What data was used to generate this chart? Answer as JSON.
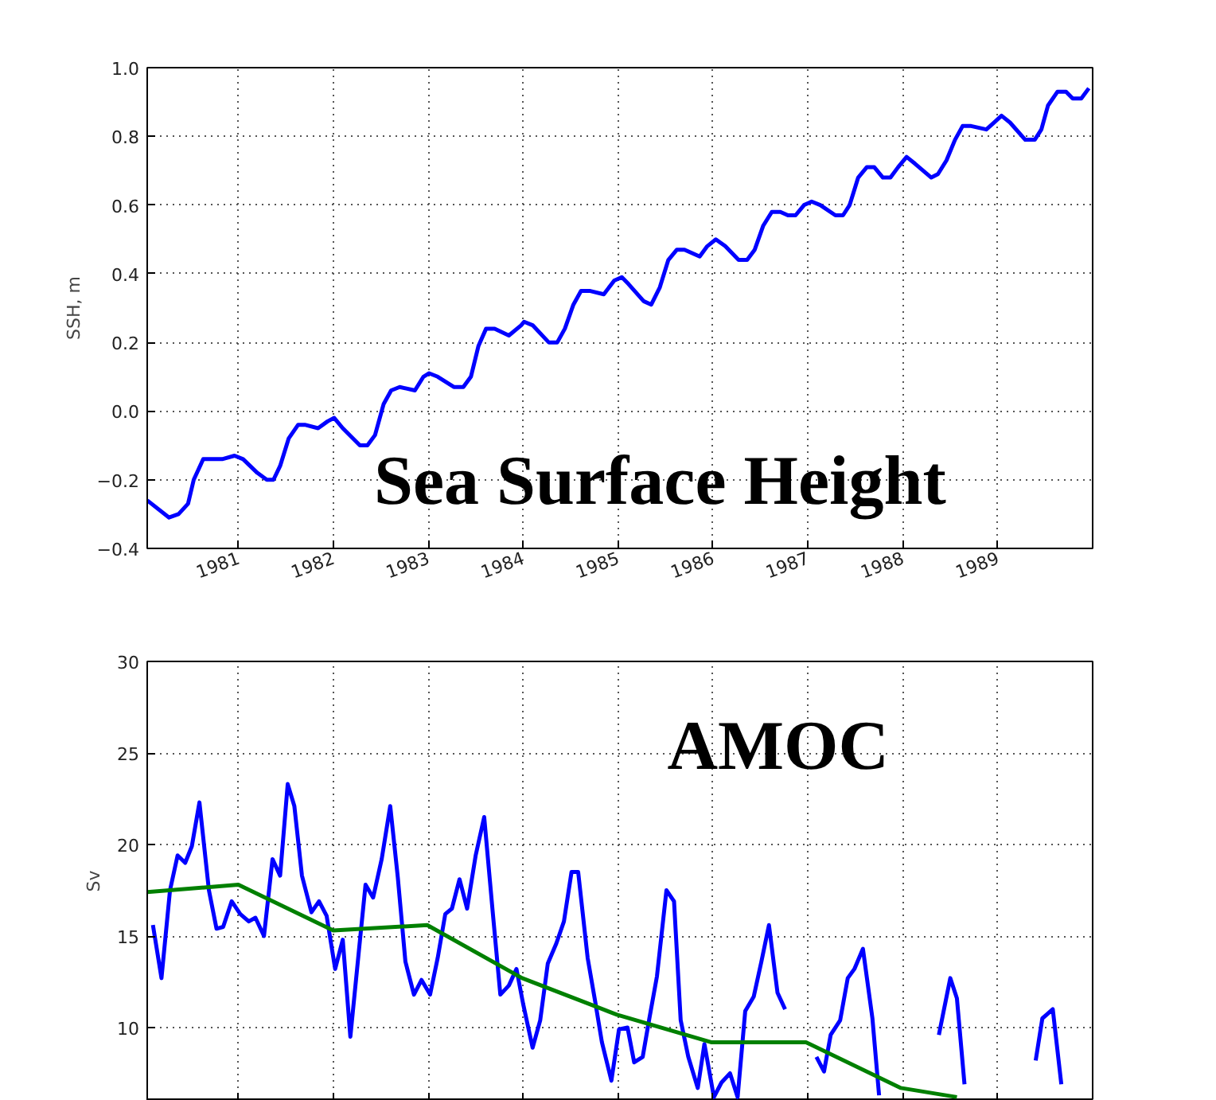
{
  "chart_data": [
    {
      "type": "line",
      "ylabel": "SSH, m",
      "annotations": [
        "Sea Surface Height"
      ],
      "xlim": [
        1980.04,
        1990
      ],
      "xticks": [
        1981,
        1982,
        1983,
        1984,
        1985,
        1986,
        1987,
        1988,
        1989
      ],
      "ylim": [
        -0.4,
        1.0
      ],
      "yticks": [
        {
          "value": -0.4,
          "label": "−0.4"
        },
        {
          "value": -0.2,
          "label": "−0.2"
        },
        {
          "value": 0,
          "label": "0.0"
        },
        {
          "value": 0.2,
          "label": "0.2"
        },
        {
          "value": 0.4,
          "label": "0.4"
        },
        {
          "value": 0.6,
          "label": "0.6"
        },
        {
          "value": 0.8,
          "label": "0.8"
        },
        {
          "value": 1.0,
          "label": "1.0"
        }
      ],
      "grid": true,
      "line_style": "solid",
      "series": [
        {
          "color": "#0000ff",
          "x": [
            1980.04,
            1980.27,
            1980.37,
            1980.47,
            1980.53,
            1980.63,
            1980.72,
            1980.83,
            1980.96,
            1981.05,
            1981.2,
            1981.3,
            1981.37,
            1981.44,
            1981.53,
            1981.63,
            1981.7,
            1981.84,
            1981.94,
            1982.01,
            1982.1,
            1982.28,
            1982.36,
            1982.44,
            1982.53,
            1982.61,
            1982.7,
            1982.86,
            1982.95,
            1983.01,
            1983.1,
            1983.27,
            1983.37,
            1983.45,
            1983.53,
            1983.61,
            1983.7,
            1983.85,
            1983.98,
            1984.01,
            1984.1,
            1984.27,
            1984.36,
            1984.44,
            1984.53,
            1984.61,
            1984.7,
            1984.85,
            1984.96,
            1985.04,
            1985.11,
            1985.27,
            1985.35,
            1985.44,
            1985.53,
            1985.62,
            1985.7,
            1985.86,
            1985.94,
            1986.03,
            1986.13,
            1986.27,
            1986.36,
            1986.44,
            1986.53,
            1986.62,
            1986.71,
            1986.79,
            1986.87,
            1986.96,
            1987.04,
            1987.13,
            1987.29,
            1987.37,
            1987.44,
            1987.53,
            1987.62,
            1987.7,
            1987.79,
            1987.87,
            1987.95,
            1988.04,
            1988.13,
            1988.3,
            1988.37,
            1988.46,
            1988.55,
            1988.63,
            1988.72,
            1988.88,
            1988.96,
            1989.04,
            1989.13,
            1989.29,
            1989.39,
            1989.46,
            1989.53,
            1989.63,
            1989.72,
            1989.79,
            1989.88,
            1989.96
          ],
          "values": [
            -0.26,
            -0.31,
            -0.3,
            -0.27,
            -0.2,
            -0.14,
            -0.14,
            -0.14,
            -0.13,
            -0.14,
            -0.18,
            -0.2,
            -0.2,
            -0.16,
            -0.08,
            -0.04,
            -0.04,
            -0.05,
            -0.03,
            -0.02,
            -0.05,
            -0.1,
            -0.1,
            -0.07,
            0.02,
            0.06,
            0.07,
            0.06,
            0.1,
            0.11,
            0.1,
            0.07,
            0.07,
            0.1,
            0.19,
            0.24,
            0.24,
            0.22,
            0.25,
            0.26,
            0.25,
            0.2,
            0.2,
            0.24,
            0.31,
            0.35,
            0.35,
            0.34,
            0.38,
            0.39,
            0.37,
            0.32,
            0.31,
            0.36,
            0.44,
            0.47,
            0.47,
            0.45,
            0.48,
            0.5,
            0.48,
            0.44,
            0.44,
            0.47,
            0.54,
            0.58,
            0.58,
            0.57,
            0.57,
            0.6,
            0.61,
            0.6,
            0.57,
            0.57,
            0.6,
            0.68,
            0.71,
            0.71,
            0.68,
            0.68,
            0.71,
            0.74,
            0.72,
            0.68,
            0.69,
            0.73,
            0.79,
            0.83,
            0.83,
            0.82,
            0.84,
            0.86,
            0.84,
            0.79,
            0.79,
            0.82,
            0.89,
            0.93,
            0.93,
            0.91,
            0.91,
            0.94
          ]
        }
      ]
    },
    {
      "type": "line",
      "ylabel": "Sv",
      "annotations": [
        "AMOC"
      ],
      "xlim": [
        1980.04,
        1990
      ],
      "xticks": [
        1981,
        1982,
        1983,
        1984,
        1985,
        1986,
        1987,
        1988,
        1989
      ],
      "ylim": [
        6,
        30
      ],
      "yticks": [
        10,
        15,
        20,
        25,
        30
      ],
      "grid": true,
      "tick_labels": "y",
      "line_style": "solid",
      "series": [
        {
          "color": "#0000ff",
          "x": [
            1980.1,
            1980.19,
            1980.28,
            1980.36,
            1980.44,
            1980.51,
            1980.59,
            1980.69,
            1980.77,
            1980.84,
            1980.93,
            1981.02,
            1981.11,
            1981.18,
            1981.27,
            1981.36,
            1981.44,
            1981.52,
            1981.59,
            1981.67,
            1981.77,
            1981.85,
            1981.93,
            1982.02,
            1982.1,
            1982.18,
            1982.27,
            1982.34,
            1982.42,
            1982.51,
            1982.6,
            1982.68,
            1982.76,
            1982.85,
            1982.93,
            1983.02,
            1983.1,
            1983.18,
            1983.25,
            1983.33,
            1983.41,
            1983.5,
            1983.59,
            1983.68,
            1983.76,
            1983.85,
            1983.93,
            1984.0,
            1984.1,
            1984.18,
            1984.26,
            1984.35,
            1984.43,
            1984.51,
            1984.58,
            1984.68,
            1984.76,
            1984.83,
            1984.93,
            1985.01,
            1985.1,
            1985.17,
            1985.26,
            1985.33,
            1985.41,
            1985.51,
            1985.59,
            1985.66,
            1985.74,
            1985.84,
            1985.91,
            1986.01,
            1986.09,
            1986.18,
            1986.26,
            1986.34,
            1986.43,
            1986.51,
            1986.59,
            1986.68,
            1986.76,
            1986.84,
            1987.09,
            1987.17,
            1987.24,
            1987.34,
            1987.42,
            1987.49,
            1987.58,
            1987.68,
            1987.75,
            1988.0,
            1988.38,
            1988.5,
            1988.57,
            1988.65,
            1989.0,
            1989.4,
            1989.47,
            1989.58,
            1989.67
          ],
          "values": [
            15.6,
            12.7,
            17.5,
            19.4,
            19.0,
            19.9,
            22.3,
            17.5,
            15.4,
            15.5,
            16.9,
            16.2,
            15.8,
            16.0,
            15.0,
            19.2,
            18.3,
            23.3,
            22.1,
            18.3,
            16.3,
            16.9,
            16.1,
            13.2,
            14.8,
            9.5,
            14.2,
            17.8,
            17.1,
            19.2,
            22.1,
            18.2,
            13.6,
            11.8,
            12.6,
            11.8,
            13.8,
            16.2,
            16.5,
            18.1,
            16.5,
            19.4,
            21.5,
            16.3,
            11.8,
            12.3,
            13.2,
            11.3,
            8.9,
            10.4,
            13.5,
            14.6,
            15.8,
            18.5,
            18.5,
            13.8,
            11.4,
            9.2,
            7.1,
            9.9,
            10.0,
            8.1,
            8.4,
            10.5,
            12.8,
            17.5,
            16.9,
            10.4,
            8.4,
            6.7,
            9.1,
            6.2,
            7.0,
            7.5,
            6.2,
            10.9,
            11.7,
            13.6,
            15.6,
            11.9,
            11.0,
            null,
            8.4,
            7.6,
            9.6,
            10.4,
            12.7,
            13.2,
            14.3,
            10.5,
            6.3,
            null,
            9.6,
            12.7,
            11.6,
            6.9,
            null,
            8.2,
            10.5,
            11.0,
            6.9
          ]
        },
        {
          "color": "#008000",
          "x": [
            1980.04,
            1981.0,
            1982.0,
            1982.99,
            1983.99,
            1984.99,
            1985.98,
            1986.98,
            1987.98,
            1988.57
          ],
          "values": [
            17.4,
            17.8,
            15.3,
            15.6,
            12.7,
            10.7,
            9.2,
            9.2,
            6.7,
            6.2
          ]
        }
      ]
    }
  ]
}
